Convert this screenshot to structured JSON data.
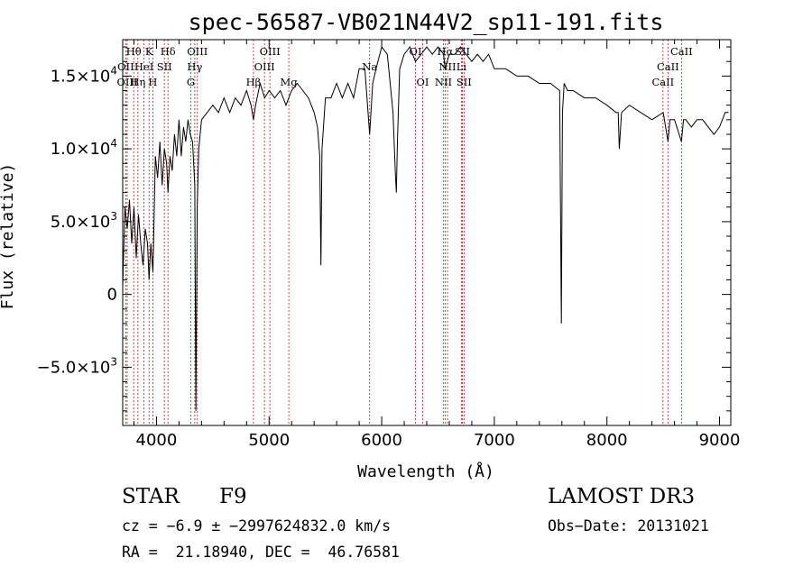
{
  "chart_data": {
    "type": "line",
    "title": "spec-56587-VB021N44V2_sp11-191.fits",
    "xlabel": "Wavelength (Å)",
    "ylabel": "Flux (relative)",
    "xlim": [
      3700,
      9100
    ],
    "ylim": [
      -9000,
      17500
    ],
    "grid": false,
    "x_ticks": [
      {
        "v": 4000,
        "label": "4000"
      },
      {
        "v": 5000,
        "label": "5000"
      },
      {
        "v": 6000,
        "label": "6000"
      },
      {
        "v": 7000,
        "label": "7000"
      },
      {
        "v": 8000,
        "label": "8000"
      },
      {
        "v": 9000,
        "label": "9000"
      }
    ],
    "y_ticks": [
      {
        "v": -5000,
        "mant": "−5.0×10",
        "exp": "3"
      },
      {
        "v": 0,
        "mant": "0",
        "exp": ""
      },
      {
        "v": 5000,
        "mant": "5.0×10",
        "exp": "3"
      },
      {
        "v": 10000,
        "mant": "1.0×10",
        "exp": "4"
      },
      {
        "v": 15000,
        "mant": "1.5×10",
        "exp": "4"
      }
    ],
    "series": [
      {
        "x": [
          3700,
          3720,
          3740,
          3760,
          3780,
          3800,
          3820,
          3840,
          3860,
          3880,
          3900,
          3920,
          3934,
          3950,
          3968,
          3990,
          4010,
          4030,
          4050,
          4070,
          4090,
          4102,
          4120,
          4140,
          4160,
          4180,
          4200,
          4220,
          4240,
          4260,
          4280,
          4300,
          4320,
          4340,
          4350,
          4362,
          4375,
          4400,
          4450,
          4500,
          4550,
          4600,
          4650,
          4700,
          4750,
          4800,
          4840,
          4861,
          4880,
          4920,
          4960,
          5000,
          5050,
          5100,
          5150,
          5200,
          5250,
          5300,
          5350,
          5400,
          5430,
          5450,
          5460,
          5470,
          5500,
          5550,
          5600,
          5650,
          5700,
          5750,
          5800,
          5850,
          5893,
          5920,
          5950,
          6000,
          6050,
          6100,
          6120,
          6130,
          6140,
          6160,
          6200,
          6250,
          6300,
          6350,
          6400,
          6450,
          6500,
          6550,
          6563,
          6600,
          6650,
          6700,
          6750,
          6800,
          6850,
          6900,
          6950,
          7000,
          7100,
          7200,
          7300,
          7400,
          7500,
          7580,
          7595,
          7605,
          7620,
          7650,
          7700,
          7800,
          7900,
          8000,
          8080,
          8100,
          8110,
          8130,
          8200,
          8300,
          8400,
          8500,
          8542,
          8560,
          8600,
          8662,
          8680,
          8700,
          8750,
          8800,
          8850,
          8900,
          8950,
          9000,
          9050,
          9080
        ],
        "y": [
          500,
          6000,
          4500,
          6500,
          3500,
          6000,
          2500,
          5500,
          3500,
          2000,
          4500,
          3500,
          1000,
          3500,
          1500,
          9500,
          8000,
          10500,
          7500,
          10000,
          9000,
          7000,
          9500,
          8500,
          11000,
          9500,
          12000,
          9500,
          11500,
          10500,
          12000,
          11000,
          10500,
          7500,
          -8000,
          6000,
          10000,
          12000,
          12500,
          13000,
          12500,
          13500,
          12500,
          13500,
          13000,
          14000,
          13000,
          12000,
          13000,
          14500,
          13500,
          14000,
          13500,
          14000,
          13000,
          14000,
          14500,
          14000,
          13500,
          12500,
          11500,
          9500,
          2000,
          10000,
          13500,
          13500,
          14500,
          13500,
          14500,
          13500,
          15500,
          15500,
          11000,
          14500,
          15500,
          17000,
          16500,
          12500,
          8500,
          7000,
          10500,
          15500,
          16500,
          17000,
          16000,
          16500,
          17000,
          16500,
          17000,
          16500,
          15500,
          16500,
          16500,
          17000,
          16500,
          16000,
          16500,
          16000,
          16500,
          15500,
          15500,
          15000,
          15000,
          14500,
          14500,
          14000,
          -2000,
          12500,
          14500,
          14000,
          14000,
          13500,
          13500,
          13000,
          12500,
          12500,
          10000,
          12500,
          13000,
          12500,
          12000,
          12500,
          10500,
          12000,
          12000,
          10500,
          12000,
          12000,
          11500,
          12000,
          12000,
          11500,
          11000,
          11500,
          12500,
          12500
        ]
      }
    ],
    "lines": [
      {
        "name": "Hθ",
        "x": 3798,
        "row": 0
      },
      {
        "name": "OII",
        "x": 3727,
        "row": 1
      },
      {
        "name": "OIII",
        "x": 3740,
        "row": 2
      },
      {
        "name": "Hη",
        "x": 3835,
        "row": 2
      },
      {
        "name": "K",
        "x": 3934,
        "row": 0
      },
      {
        "name": "HeI",
        "x": 3889,
        "row": 1
      },
      {
        "name": "H",
        "x": 3968,
        "row": 2
      },
      {
        "name": "SII",
        "x": 4070,
        "row": 1
      },
      {
        "name": "Hδ",
        "x": 4102,
        "row": 0
      },
      {
        "name": "OIII",
        "x": 4363,
        "row": 0
      },
      {
        "name": "Hγ",
        "x": 4340,
        "row": 1
      },
      {
        "name": "G",
        "x": 4305,
        "row": 2
      },
      {
        "name": "Hβ",
        "x": 4861,
        "row": 2
      },
      {
        "name": "OIII",
        "x": 5007,
        "row": 0
      },
      {
        "name": "OIII",
        "x": 4959,
        "row": 1
      },
      {
        "name": "Mg",
        "x": 5175,
        "row": 2
      },
      {
        "name": "Na",
        "x": 5893,
        "row": 1
      },
      {
        "name": "OI",
        "x": 6300,
        "row": 0
      },
      {
        "name": "OI",
        "x": 6364,
        "row": 2
      },
      {
        "name": "Hα",
        "x": 6563,
        "row": 0
      },
      {
        "name": "SII",
        "x": 6717,
        "row": 0
      },
      {
        "name": "NII",
        "x": 6584,
        "row": 1
      },
      {
        "name": "Li",
        "x": 6708,
        "row": 1
      },
      {
        "name": "NII",
        "x": 6548,
        "row": 2
      },
      {
        "name": "SII",
        "x": 6731,
        "row": 2
      },
      {
        "name": "CaII",
        "x": 8662,
        "row": 0
      },
      {
        "name": "CaII",
        "x": 8542,
        "row": 1
      },
      {
        "name": "CaII",
        "x": 8498,
        "row": 2
      }
    ]
  },
  "info": {
    "class_label": "STAR",
    "subclass": "F9",
    "survey": "LAMOST DR3",
    "cz": "cz = −6.9 ± −2997624832.0 km/s",
    "obs_date": "Obs−Date: 20131021",
    "coords": "RA =  21.18940, DEC =  46.76581"
  },
  "colors": {
    "spectrum": "#000000",
    "line_marker": "#b22222"
  }
}
